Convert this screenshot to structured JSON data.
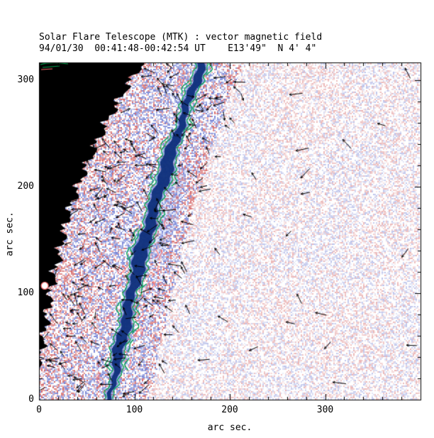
{
  "figure": {
    "title": "Solar Flare Telescope (MTK) : vector magnetic field",
    "subtitle": "94/01/30  00:41:48-00:42:54 UT    E13'49\"  N 4' 4\""
  },
  "chart_data": {
    "type": "heatmap",
    "title": "Solar Flare Telescope (MTK) : vector magnetic field",
    "subtitle": "94/01/30  00:41:48-00:42:54 UT    E13'49\"  N 4' 4\"",
    "xlabel": "arc sec.",
    "ylabel": "arc sec.",
    "xlim": [
      0,
      400
    ],
    "ylim": [
      0,
      317
    ],
    "x_ticks": [
      0,
      100,
      200,
      300
    ],
    "y_ticks": [
      0,
      100,
      200,
      300
    ],
    "minor_tick_step": 20,
    "legend": {
      "positive_polarity": "red/pink speckle",
      "negative_polarity": "blue speckle",
      "strong_field_ridge": "dark blue band flanked by green and red contours",
      "vectors": "short black arrows (transverse magnetic field)",
      "off_limb": "solid black region along left edge (sky beyond solar limb)"
    },
    "features": {
      "limb_edge": [
        [
          109,
          317
        ],
        [
          89,
          289
        ],
        [
          72,
          262
        ],
        [
          58,
          235
        ],
        [
          45,
          209
        ],
        [
          31,
          175
        ],
        [
          23,
          142
        ],
        [
          14,
          109
        ],
        [
          8,
          75
        ],
        [
          3,
          49
        ],
        [
          0,
          32
        ]
      ],
      "ridge": {
        "top": [
          171,
          317
        ],
        "bottom": [
          74,
          0
        ],
        "bow": -9
      },
      "limb_blob": {
        "x": 6,
        "y": 107
      }
    },
    "render": {
      "seed": 7,
      "arrow_count": 260,
      "colors": {
        "positive": "#cc4444",
        "negative": "#5566cc",
        "ridge_core": "#0e2f7b",
        "ridge_fringe": "#5b79d6",
        "diffuse": "#7b93e0",
        "contour_green": "#00a550",
        "contour_red": "#ff6b6b",
        "off_limb": "#000000",
        "frame": "#000000"
      }
    }
  }
}
